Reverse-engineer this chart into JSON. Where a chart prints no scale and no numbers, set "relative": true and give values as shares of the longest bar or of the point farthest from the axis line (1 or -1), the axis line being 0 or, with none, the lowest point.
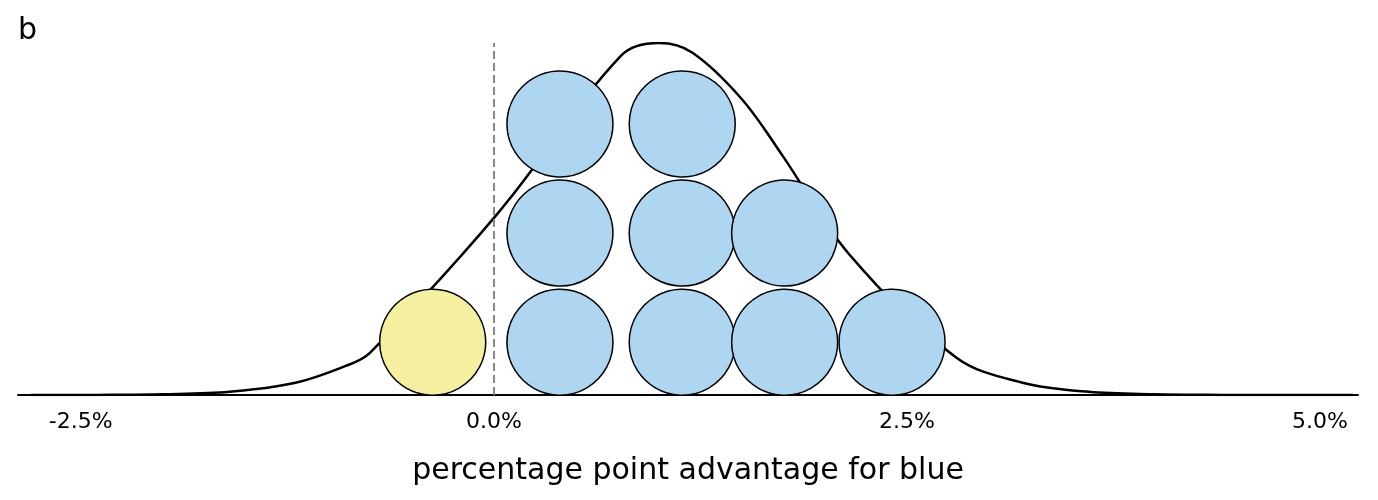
{
  "chart_data": {
    "type": "scatter",
    "title": "b",
    "xlabel": "percentage point advantage for blue",
    "relative": true,
    "xlim": [
      -2.88,
      5.23
    ],
    "xticks": [
      {
        "value": -2.5,
        "label": "-2.5%"
      },
      {
        "value": 0,
        "label": "0.0%"
      },
      {
        "value": 2.5,
        "label": "2.5%"
      },
      {
        "value": 5,
        "label": "5.0%"
      }
    ],
    "tick_labels": "x",
    "grid": false,
    "marker": "circle",
    "ref_lines": [
      {
        "axis": "x",
        "value": 0,
        "color": "#888888",
        "line_style": "dashed"
      }
    ],
    "series": [
      {
        "type": "line",
        "color": "#000000",
        "line_style": "solid",
        "marker": "none",
        "x": [
          -2.8,
          -2.4,
          -2.0,
          -1.6,
          -1.2,
          -0.9,
          -0.75,
          0.02,
          0.77,
          1.0,
          1.2,
          1.5,
          1.75,
          2.15,
          2.8,
          3.2,
          3.6,
          4.0,
          4.4,
          4.8,
          5.2
        ],
        "values": [
          0,
          0.0003,
          0.002,
          0.009,
          0.035,
          0.082,
          0.12,
          0.514,
          0.964,
          1,
          0.973,
          0.841,
          0.678,
          0.4,
          0.106,
          0.035,
          0.009,
          0.002,
          0.0003,
          0,
          0
        ]
      },
      {
        "color": "#f5f0a0",
        "x": [
          -0.37
        ],
        "values": [
          0.15
        ]
      },
      {
        "color": "#aed6f1",
        "x": [
          0.4,
          0.4,
          0.4,
          1.14,
          1.14,
          1.14,
          1.76,
          1.76,
          2.41
        ],
        "values": [
          0.15,
          0.46,
          0.77,
          0.15,
          0.46,
          0.77,
          0.15,
          0.46,
          0.15
        ]
      }
    ]
  }
}
